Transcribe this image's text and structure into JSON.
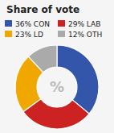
{
  "chart_data": {
    "type": "donut",
    "title": "Share of vote",
    "categories": [
      "36% CON",
      "29% LAB",
      "23% LD",
      "12% OTH"
    ],
    "values": [
      36,
      29,
      23,
      12
    ],
    "colors": [
      "#3355aa",
      "#cc2222",
      "#f0a800",
      "#aaaaaa"
    ],
    "annotations": [
      "%"
    ],
    "legend": "top"
  }
}
